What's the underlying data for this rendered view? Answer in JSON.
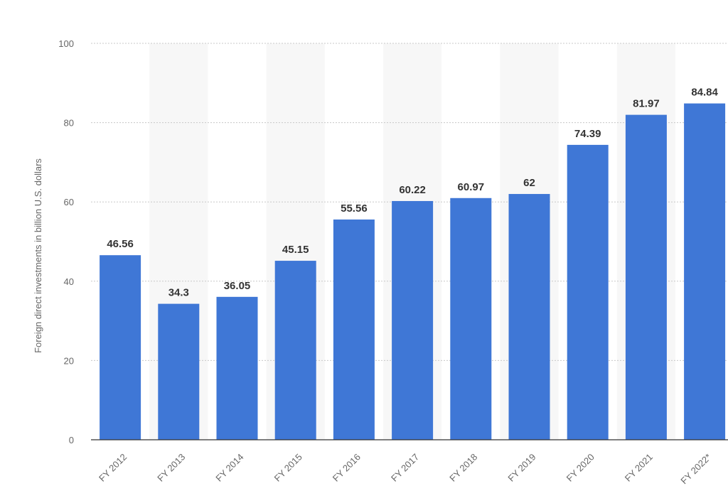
{
  "chart_data": {
    "type": "bar",
    "categories": [
      "FY 2012",
      "FY 2013",
      "FY 2014",
      "FY 2015",
      "FY 2016",
      "FY 2017",
      "FY 2018",
      "FY 2019",
      "FY 2020",
      "FY 2021",
      "FY 2022*"
    ],
    "values": [
      46.56,
      34.3,
      36.05,
      45.15,
      55.56,
      60.22,
      60.97,
      62,
      74.39,
      81.97,
      84.84
    ],
    "value_labels": [
      "46.56",
      "34.3",
      "36.05",
      "45.15",
      "55.56",
      "60.22",
      "60.97",
      "62",
      "74.39",
      "81.97",
      "84.84"
    ],
    "title": "",
    "xlabel": "",
    "ylabel": "Foreign direct investments in billion U.S. dollars",
    "ylim": [
      0,
      100
    ],
    "yticks": [
      "0",
      "20",
      "40",
      "60",
      "80",
      "100"
    ],
    "grid": true,
    "bar_color": "#3f77d6"
  }
}
